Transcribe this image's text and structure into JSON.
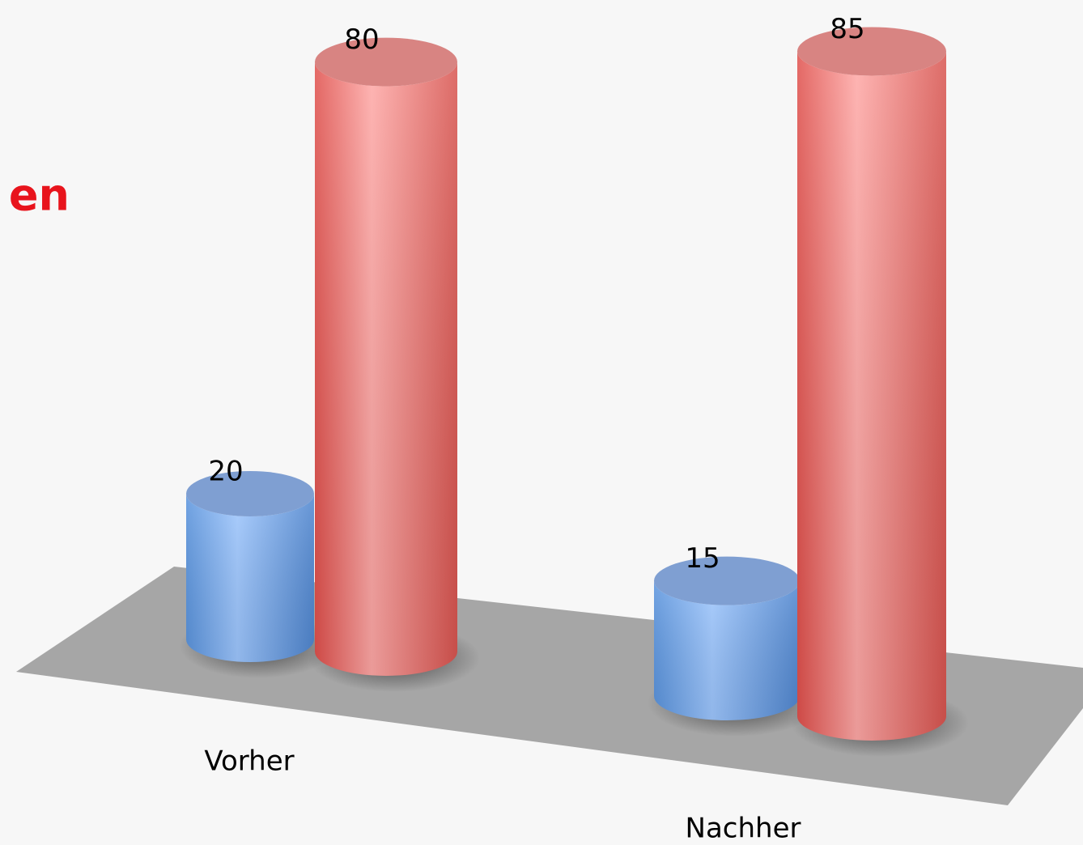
{
  "chart_data": {
    "type": "bar3d",
    "title": "en",
    "categories": [
      "Vorher",
      "Nachher"
    ],
    "series": [
      {
        "color": "#6fa6e8",
        "values": [
          20,
          15
        ]
      },
      {
        "color": "#f07c78",
        "values": [
          80,
          85
        ]
      }
    ]
  }
}
